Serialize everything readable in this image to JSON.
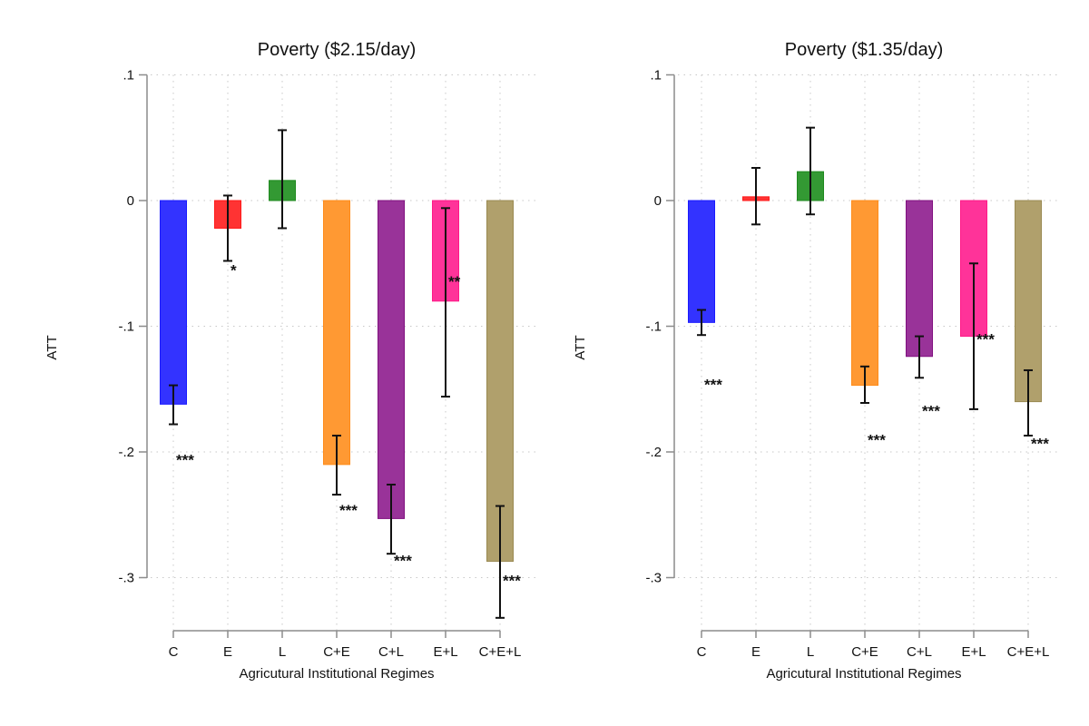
{
  "chart_data": [
    {
      "type": "bar",
      "title": "Poverty ($2.15/day)",
      "xlabel": "Agricutural Institutional Regimes",
      "ylabel": "ATT",
      "ylim": [
        -0.34,
        0.1
      ],
      "yticks": [
        0.1,
        0,
        -0.1,
        -0.2,
        -0.3
      ],
      "ytick_labels": [
        ".1",
        "0",
        "-.1",
        "-.2",
        "-.3"
      ],
      "grid": true,
      "categories": [
        "C",
        "E",
        "L",
        "C+E",
        "C+L",
        "E+L",
        "C+E+L"
      ],
      "values": [
        -0.162,
        -0.022,
        0.016,
        -0.21,
        -0.253,
        -0.08,
        -0.287
      ],
      "ci_upper": [
        -0.147,
        0.004,
        0.056,
        -0.187,
        -0.226,
        -0.006,
        -0.243
      ],
      "ci_lower": [
        -0.178,
        -0.048,
        -0.022,
        -0.234,
        -0.281,
        -0.156,
        -0.332
      ],
      "significance": [
        "***",
        "*",
        "",
        "***",
        "***",
        "**",
        "***"
      ],
      "star_y": [
        -0.204,
        -0.053,
        null,
        -0.244,
        -0.284,
        -0.062,
        -0.3
      ]
    },
    {
      "type": "bar",
      "title": "Poverty ($1.35/day)",
      "xlabel": "Agricutural Institutional Regimes",
      "ylabel": "ATT",
      "ylim": [
        -0.34,
        0.1
      ],
      "yticks": [
        0.1,
        0,
        -0.1,
        -0.2,
        -0.3
      ],
      "ytick_labels": [
        ".1",
        "0",
        "-.1",
        "-.2",
        "-.3"
      ],
      "grid": true,
      "categories": [
        "C",
        "E",
        "L",
        "C+E",
        "C+L",
        "E+L",
        "C+E+L"
      ],
      "values": [
        -0.097,
        0.003,
        0.023,
        -0.147,
        -0.124,
        -0.108,
        -0.16
      ],
      "ci_upper": [
        -0.087,
        0.026,
        0.058,
        -0.132,
        -0.108,
        -0.05,
        -0.135
      ],
      "ci_lower": [
        -0.107,
        -0.019,
        -0.011,
        -0.161,
        -0.141,
        -0.166,
        -0.187
      ],
      "significance": [
        "***",
        "",
        "",
        "***",
        "***",
        "***",
        "***"
      ],
      "star_y": [
        -0.144,
        null,
        null,
        -0.188,
        -0.165,
        -0.108,
        -0.191
      ]
    }
  ],
  "colors": [
    "#3333ff",
    "#ff3333",
    "#339933",
    "#ff9933",
    "#993399",
    "#ff3399",
    "#b0a06c"
  ],
  "border_colors": [
    "#1a1aff",
    "#ff1a1a",
    "#1f8a1f",
    "#ff8c1a",
    "#80107f",
    "#ff1a88",
    "#9a8a52"
  ]
}
